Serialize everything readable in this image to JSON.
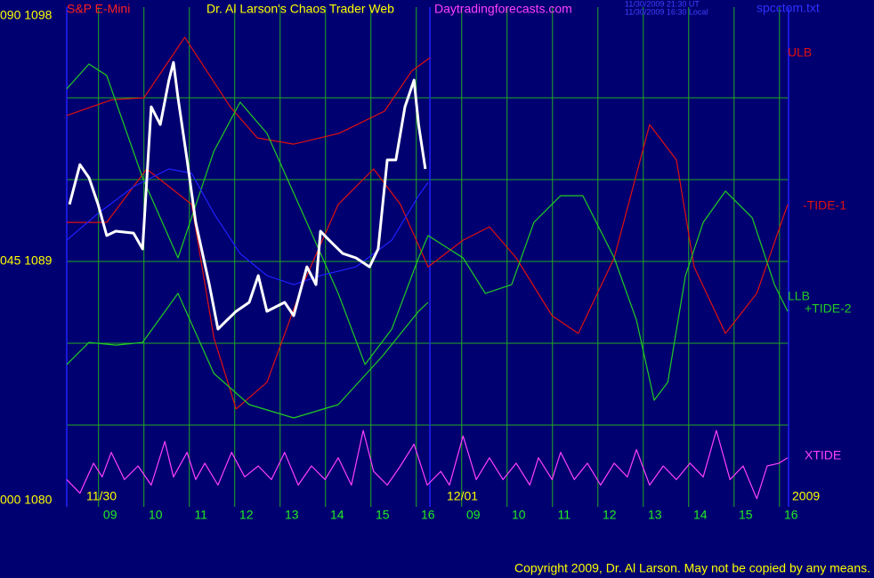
{
  "chart_data": {
    "type": "line",
    "title": "S&P E-Mini",
    "subtitle": "Dr. Al Larson's Chaos Trader Web",
    "site": "Daytradingforecasts.com",
    "timestamps": [
      "11/30/2009 21:30 UT",
      "11/30/2009 16:30 Local"
    ],
    "file": "spcctom.txt",
    "date_labels": [
      "11/30",
      "12/01",
      "2009"
    ],
    "copyright": "Copyright 2009, Dr. Al Larson. May not be copied by any means.",
    "xlim": [
      0,
      15.9
    ],
    "day_break": 8,
    "xticks": [
      {
        "value": 0.7,
        "label": "09"
      },
      {
        "value": 1.7,
        "label": "10"
      },
      {
        "value": 2.7,
        "label": "11"
      },
      {
        "value": 3.7,
        "label": "12"
      },
      {
        "value": 4.7,
        "label": "13"
      },
      {
        "value": 5.7,
        "label": "14"
      },
      {
        "value": 6.7,
        "label": "15"
      },
      {
        "value": 7.7,
        "label": "16"
      },
      {
        "value": 8.7,
        "label": "09"
      },
      {
        "value": 9.7,
        "label": "10"
      },
      {
        "value": 10.7,
        "label": "11"
      },
      {
        "value": 11.7,
        "label": "12"
      },
      {
        "value": 12.7,
        "label": "13"
      },
      {
        "value": 13.7,
        "label": "14"
      },
      {
        "value": 14.7,
        "label": "15"
      },
      {
        "value": 15.7,
        "label": "16"
      }
    ],
    "ylim": [
      1080,
      1098
    ],
    "yticks": [
      {
        "value": 1098,
        "label": "090 1098"
      },
      {
        "value": 1089,
        "label": "045 1089"
      },
      {
        "value": 1080,
        "label": "000 1080"
      }
    ],
    "ygrid": [
      1083,
      1086,
      1089,
      1092,
      1095
    ],
    "grid": true,
    "series": [
      {
        "name": "ULB",
        "color": "#e01010",
        "x": [
          0,
          1,
          1.7,
          2.6,
          3.6,
          4.2,
          5,
          6,
          7,
          7.6,
          8
        ],
        "values": [
          1094.35,
          1094.93,
          1095.0,
          1097.22,
          1094.67,
          1093.53,
          1093.3,
          1093.7,
          1094.51,
          1095.98,
          1096.47
        ]
      },
      {
        "name": "-TIDE-1",
        "color": "#e01010",
        "x": [
          0,
          0.88,
          1.76,
          2.75,
          3.24,
          3.73,
          4.41,
          5.2,
          5.98,
          6.76,
          7.35,
          7.96,
          8.73,
          9.31,
          9.9,
          10.69,
          11.27,
          12.06,
          12.84,
          13.43,
          13.82,
          14.51,
          15.2,
          15.88
        ],
        "values": [
          1090.43,
          1090.43,
          1092.39,
          1091.09,
          1086.2,
          1083.59,
          1084.57,
          1088.15,
          1091.09,
          1092.39,
          1091.09,
          1088.8,
          1089.78,
          1090.27,
          1089.13,
          1087.01,
          1086.36,
          1089.13,
          1094.02,
          1092.72,
          1088.8,
          1086.36,
          1087.83,
          1091.09
        ]
      },
      {
        "name": "LLB",
        "color": "#22cc22",
        "x": [
          0,
          0.49,
          1.08,
          1.67,
          2.45,
          3.24,
          4.02,
          5.0,
          5.98,
          6.96,
          7.75,
          7.96
        ],
        "values": [
          1085.22,
          1086.03,
          1085.93,
          1086.03,
          1087.83,
          1084.89,
          1083.75,
          1083.26,
          1083.75,
          1085.54,
          1087.17,
          1087.5
        ]
      },
      {
        "name": "+TIDE-2",
        "color": "#22cc22",
        "x": [
          0,
          0.49,
          0.88,
          1.67,
          2.45,
          3.24,
          3.82,
          4.41,
          5.2,
          5.98,
          6.57,
          7.16,
          7.75,
          7.96,
          8.73,
          9.22,
          9.8,
          10.29,
          10.88,
          11.37,
          12.06,
          12.55,
          12.94,
          13.24,
          13.63,
          14.02,
          14.51,
          15.1,
          15.59,
          15.88
        ],
        "values": [
          1095.33,
          1096.24,
          1095.82,
          1092.07,
          1089.13,
          1093.04,
          1094.84,
          1093.7,
          1090.76,
          1087.83,
          1085.22,
          1086.52,
          1089.13,
          1089.95,
          1089.13,
          1087.83,
          1088.15,
          1090.43,
          1091.41,
          1091.41,
          1089.13,
          1086.85,
          1083.91,
          1084.57,
          1088.48,
          1090.43,
          1091.58,
          1090.6,
          1088.15,
          1087.17
        ]
      },
      {
        "name": "XTIDE",
        "color": "#ff40ff",
        "x": [
          0,
          0.29,
          0.59,
          0.78,
          0.98,
          1.27,
          1.57,
          1.86,
          2.16,
          2.35,
          2.65,
          2.84,
          3.04,
          3.33,
          3.63,
          3.92,
          4.22,
          4.51,
          4.8,
          5.1,
          5.39,
          5.69,
          5.98,
          6.27,
          6.53,
          6.76,
          7.06,
          7.35,
          7.65,
          7.94,
          8.24,
          8.43,
          8.73,
          9.02,
          9.31,
          9.61,
          9.9,
          10.2,
          10.39,
          10.69,
          10.88,
          11.18,
          11.47,
          11.76,
          12.06,
          12.35,
          12.55,
          12.84,
          13.14,
          13.43,
          13.73,
          14.02,
          14.31,
          14.61,
          14.9,
          15.2,
          15.43,
          15.69,
          15.88
        ],
        "values": [
          1081.0,
          1080.5,
          1081.6,
          1081.1,
          1082.0,
          1081.0,
          1081.5,
          1080.8,
          1082.4,
          1081.1,
          1082.0,
          1081.0,
          1081.6,
          1080.8,
          1082.0,
          1081.1,
          1081.5,
          1081.0,
          1082.0,
          1080.8,
          1081.5,
          1081.0,
          1081.8,
          1080.8,
          1082.8,
          1081.3,
          1080.8,
          1081.5,
          1082.3,
          1080.8,
          1081.3,
          1080.8,
          1082.6,
          1081.0,
          1081.8,
          1081.0,
          1081.6,
          1080.8,
          1081.8,
          1081.0,
          1082.0,
          1081.0,
          1081.6,
          1080.8,
          1081.6,
          1081.1,
          1082.1,
          1080.8,
          1081.5,
          1081.0,
          1081.6,
          1081.1,
          1082.8,
          1081.0,
          1081.5,
          1080.3,
          1081.5,
          1081.6,
          1081.8
        ]
      },
      {
        "color": "#2020ff",
        "x": [
          0,
          0.69,
          1.47,
          2.25,
          2.75,
          3.24,
          3.82,
          4.41,
          5.0,
          5.59,
          6.37,
          7.16,
          7.75,
          7.96
        ],
        "values": [
          1089.78,
          1090.76,
          1091.74,
          1092.39,
          1092.23,
          1090.76,
          1089.29,
          1088.48,
          1088.15,
          1088.48,
          1088.8,
          1089.78,
          1091.41,
          1091.9
        ]
      },
      {
        "color": "#ffffff",
        "x": [
          0.06,
          0.29,
          0.49,
          0.69,
          0.88,
          1.08,
          1.47,
          1.67,
          1.86,
          2.06,
          2.25,
          2.35,
          2.45,
          2.65,
          2.84,
          3.14,
          3.33,
          3.53,
          3.73,
          4.02,
          4.22,
          4.41,
          4.8,
          5.0,
          5.29,
          5.49,
          5.59,
          5.78,
          6.08,
          6.37,
          6.67,
          6.86,
          7.06,
          7.25,
          7.45,
          7.65,
          7.75,
          7.9
        ],
        "values": [
          1091.09,
          1092.55,
          1092.07,
          1091.09,
          1089.95,
          1090.11,
          1090.04,
          1089.46,
          1094.67,
          1094.02,
          1095.65,
          1096.3,
          1095.0,
          1092.72,
          1090.43,
          1088.15,
          1086.52,
          1086.85,
          1087.17,
          1087.5,
          1088.48,
          1087.17,
          1087.5,
          1087.01,
          1088.8,
          1088.15,
          1090.11,
          1089.78,
          1089.29,
          1089.13,
          1088.8,
          1089.46,
          1092.72,
          1092.72,
          1094.67,
          1095.65,
          1094.02,
          1092.39
        ]
      }
    ]
  }
}
